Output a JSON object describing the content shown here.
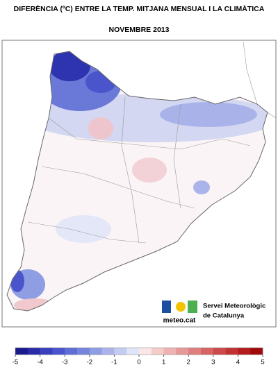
{
  "header": {
    "title": "DIFERÈNCIA (ºC) ENTRE LA TEMP. MITJANA MENSUAL I LA CLIMÀTICA",
    "subtitle": "NOVEMBRE 2013"
  },
  "logo": {
    "brand": "meteo.cat",
    "line1": "Servei Meteorològic",
    "line2": "de Catalunya"
  },
  "legend": {
    "ticks": [
      -5,
      -4,
      -3,
      -2,
      -1,
      0,
      1,
      2,
      3,
      4,
      5
    ],
    "colors": [
      "#1a1a8c",
      "#2b2ba8",
      "#3a3fc0",
      "#4a55cc",
      "#5e6ed4",
      "#7585dc",
      "#8f9de3",
      "#aab4ea",
      "#c4cbf1",
      "#e0e4f8",
      "#fae6e6",
      "#f4cccc",
      "#eeb2b2",
      "#e69898",
      "#de7e7e",
      "#d66464",
      "#cc4a4a",
      "#c23232",
      "#b41c1c",
      "#a00a0a"
    ]
  }
}
